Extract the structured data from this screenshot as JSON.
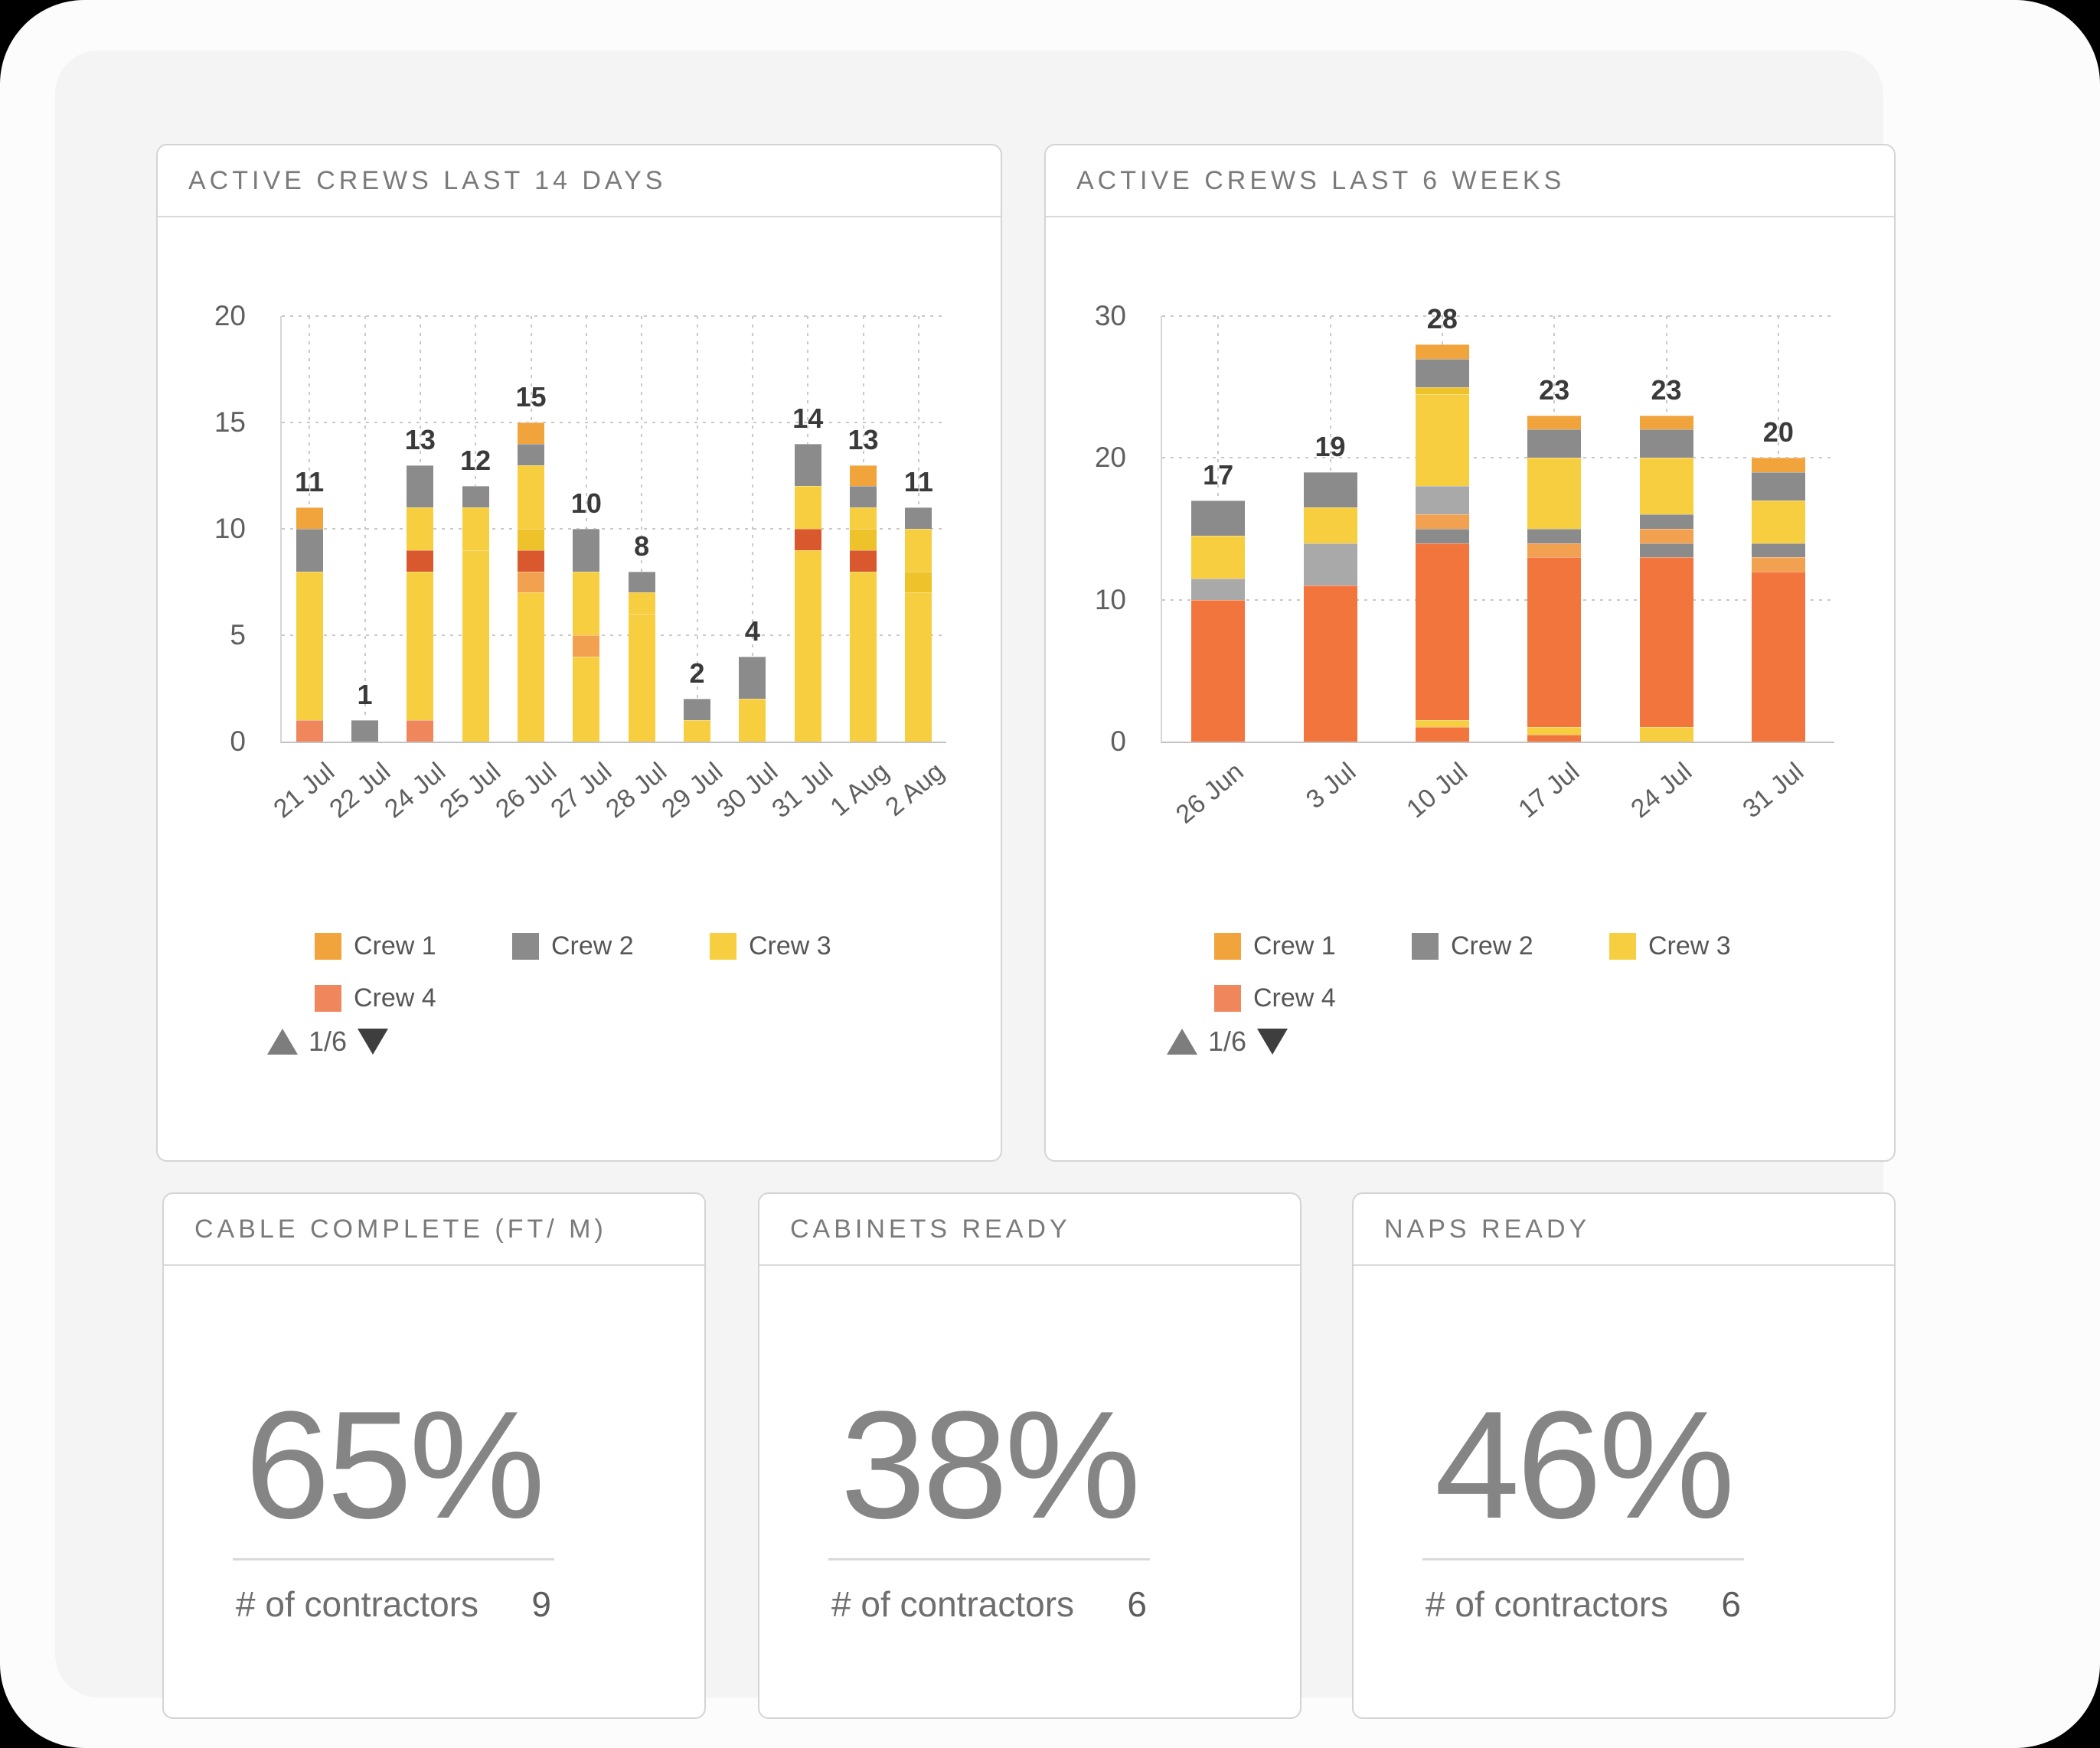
{
  "palette": {
    "orange": "#F1A33C",
    "gray": "#8B8B8B",
    "yellow": "#F7CE3F",
    "salmon": "#F0875C",
    "mustard": "#EEC22B",
    "redorange": "#D9582E",
    "orange2": "#F2A150",
    "deeporange": "#F3753E",
    "lightgray": "#A9A9A9"
  },
  "chart_data": [
    {
      "type": "stacked-bar",
      "title": "ACTIVE CREWS LAST 14 DAYS",
      "y_max": 20,
      "y_ticks": [
        0,
        5,
        10,
        15,
        20
      ],
      "grid": "dotted",
      "categories": [
        "21 Jul",
        "22 Jul",
        "24 Jul",
        "25 Jul",
        "26 Jul",
        "27 Jul",
        "28 Jul",
        "29 Jul",
        "30 Jul",
        "31 Jul",
        "1 Aug",
        "2 Aug"
      ],
      "totals": [
        11,
        1,
        13,
        12,
        15,
        10,
        8,
        2,
        4,
        14,
        13,
        11
      ],
      "stacks": [
        [
          {
            "c": "salmon",
            "v": 1
          },
          {
            "c": "yellow",
            "v": 7
          },
          {
            "c": "gray",
            "v": 2
          },
          {
            "c": "orange",
            "v": 1
          }
        ],
        [
          {
            "c": "gray",
            "v": 1
          }
        ],
        [
          {
            "c": "salmon",
            "v": 1
          },
          {
            "c": "yellow",
            "v": 7
          },
          {
            "c": "redorange",
            "v": 1
          },
          {
            "c": "yellow",
            "v": 2
          },
          {
            "c": "gray",
            "v": 2
          }
        ],
        [
          {
            "c": "yellow",
            "v": 9
          },
          {
            "c": "yellow",
            "v": 2
          },
          {
            "c": "gray",
            "v": 1
          }
        ],
        [
          {
            "c": "yellow",
            "v": 7
          },
          {
            "c": "orange2",
            "v": 1
          },
          {
            "c": "redorange",
            "v": 1
          },
          {
            "c": "mustard",
            "v": 1
          },
          {
            "c": "yellow",
            "v": 3
          },
          {
            "c": "gray",
            "v": 1
          },
          {
            "c": "orange",
            "v": 1
          }
        ],
        [
          {
            "c": "yellow",
            "v": 4
          },
          {
            "c": "orange2",
            "v": 1
          },
          {
            "c": "yellow",
            "v": 3
          },
          {
            "c": "gray",
            "v": 2
          }
        ],
        [
          {
            "c": "yellow",
            "v": 6
          },
          {
            "c": "yellow",
            "v": 1
          },
          {
            "c": "gray",
            "v": 1
          }
        ],
        [
          {
            "c": "yellow",
            "v": 1
          },
          {
            "c": "gray",
            "v": 1
          }
        ],
        [
          {
            "c": "yellow",
            "v": 2
          },
          {
            "c": "gray",
            "v": 2
          }
        ],
        [
          {
            "c": "yellow",
            "v": 9
          },
          {
            "c": "redorange",
            "v": 1
          },
          {
            "c": "yellow",
            "v": 2
          },
          {
            "c": "gray",
            "v": 2
          }
        ],
        [
          {
            "c": "yellow",
            "v": 8
          },
          {
            "c": "redorange",
            "v": 1
          },
          {
            "c": "mustard",
            "v": 1
          },
          {
            "c": "yellow",
            "v": 1
          },
          {
            "c": "gray",
            "v": 1
          },
          {
            "c": "orange",
            "v": 1
          }
        ],
        [
          {
            "c": "yellow",
            "v": 7
          },
          {
            "c": "mustard",
            "v": 1
          },
          {
            "c": "yellow",
            "v": 2
          },
          {
            "c": "gray",
            "v": 1
          }
        ]
      ],
      "legend": [
        {
          "label": "Crew 1",
          "color": "orange"
        },
        {
          "label": "Crew 2",
          "color": "gray"
        },
        {
          "label": "Crew 3",
          "color": "yellow"
        },
        {
          "label": "Crew 4",
          "color": "salmon"
        }
      ],
      "pager": "1/6"
    },
    {
      "type": "stacked-bar",
      "title": "ACTIVE CREWS LAST 6 WEEKS",
      "y_max": 30,
      "y_ticks": [
        0,
        10,
        20,
        30
      ],
      "grid": "dotted",
      "categories": [
        "26 Jun",
        "3 Jul",
        "10 Jul",
        "17 Jul",
        "24 Jul",
        "31 Jul"
      ],
      "totals": [
        17,
        19,
        28,
        23,
        23,
        20
      ],
      "stacks": [
        [
          {
            "c": "deeporange",
            "v": 10
          },
          {
            "c": "lightgray",
            "v": 1.5
          },
          {
            "c": "yellow",
            "v": 3
          },
          {
            "c": "gray",
            "v": 2.5
          }
        ],
        [
          {
            "c": "deeporange",
            "v": 11
          },
          {
            "c": "lightgray",
            "v": 3
          },
          {
            "c": "yellow",
            "v": 2.5
          },
          {
            "c": "gray",
            "v": 2.5
          }
        ],
        [
          {
            "c": "deeporange",
            "v": 1
          },
          {
            "c": "yellow",
            "v": 0.5
          },
          {
            "c": "deeporange",
            "v": 12.5
          },
          {
            "c": "gray",
            "v": 1
          },
          {
            "c": "orange2",
            "v": 1
          },
          {
            "c": "lightgray",
            "v": 2
          },
          {
            "c": "yellow",
            "v": 6.5
          },
          {
            "c": "mustard",
            "v": 0.5
          },
          {
            "c": "gray",
            "v": 2
          },
          {
            "c": "orange",
            "v": 1
          }
        ],
        [
          {
            "c": "deeporange",
            "v": 0.5
          },
          {
            "c": "yellow",
            "v": 0.5
          },
          {
            "c": "deeporange",
            "v": 12
          },
          {
            "c": "orange2",
            "v": 1
          },
          {
            "c": "gray",
            "v": 1
          },
          {
            "c": "yellow",
            "v": 5
          },
          {
            "c": "gray",
            "v": 2
          },
          {
            "c": "orange",
            "v": 1
          }
        ],
        [
          {
            "c": "yellow",
            "v": 1
          },
          {
            "c": "deeporange",
            "v": 12
          },
          {
            "c": "gray",
            "v": 1
          },
          {
            "c": "orange2",
            "v": 1
          },
          {
            "c": "gray",
            "v": 1
          },
          {
            "c": "yellow",
            "v": 4
          },
          {
            "c": "gray",
            "v": 2
          },
          {
            "c": "orange",
            "v": 1
          }
        ],
        [
          {
            "c": "deeporange",
            "v": 12
          },
          {
            "c": "orange2",
            "v": 1
          },
          {
            "c": "gray",
            "v": 1
          },
          {
            "c": "yellow",
            "v": 3
          },
          {
            "c": "gray",
            "v": 2
          },
          {
            "c": "orange",
            "v": 1
          }
        ]
      ],
      "legend": [
        {
          "label": "Crew 1",
          "color": "orange"
        },
        {
          "label": "Crew 2",
          "color": "gray"
        },
        {
          "label": "Crew 3",
          "color": "yellow"
        },
        {
          "label": "Crew 4",
          "color": "salmon"
        }
      ],
      "pager": "1/6"
    }
  ],
  "cards": [
    {
      "title": "CABLE COMPLETE (FT/ M)",
      "value": "65%",
      "caption": "# of contractors",
      "count": "9"
    },
    {
      "title": "CABINETS READY",
      "value": "38%",
      "caption": "# of contractors",
      "count": "6"
    },
    {
      "title": "NAPS READY",
      "value": "46%",
      "caption": "# of contractors",
      "count": "6"
    }
  ]
}
